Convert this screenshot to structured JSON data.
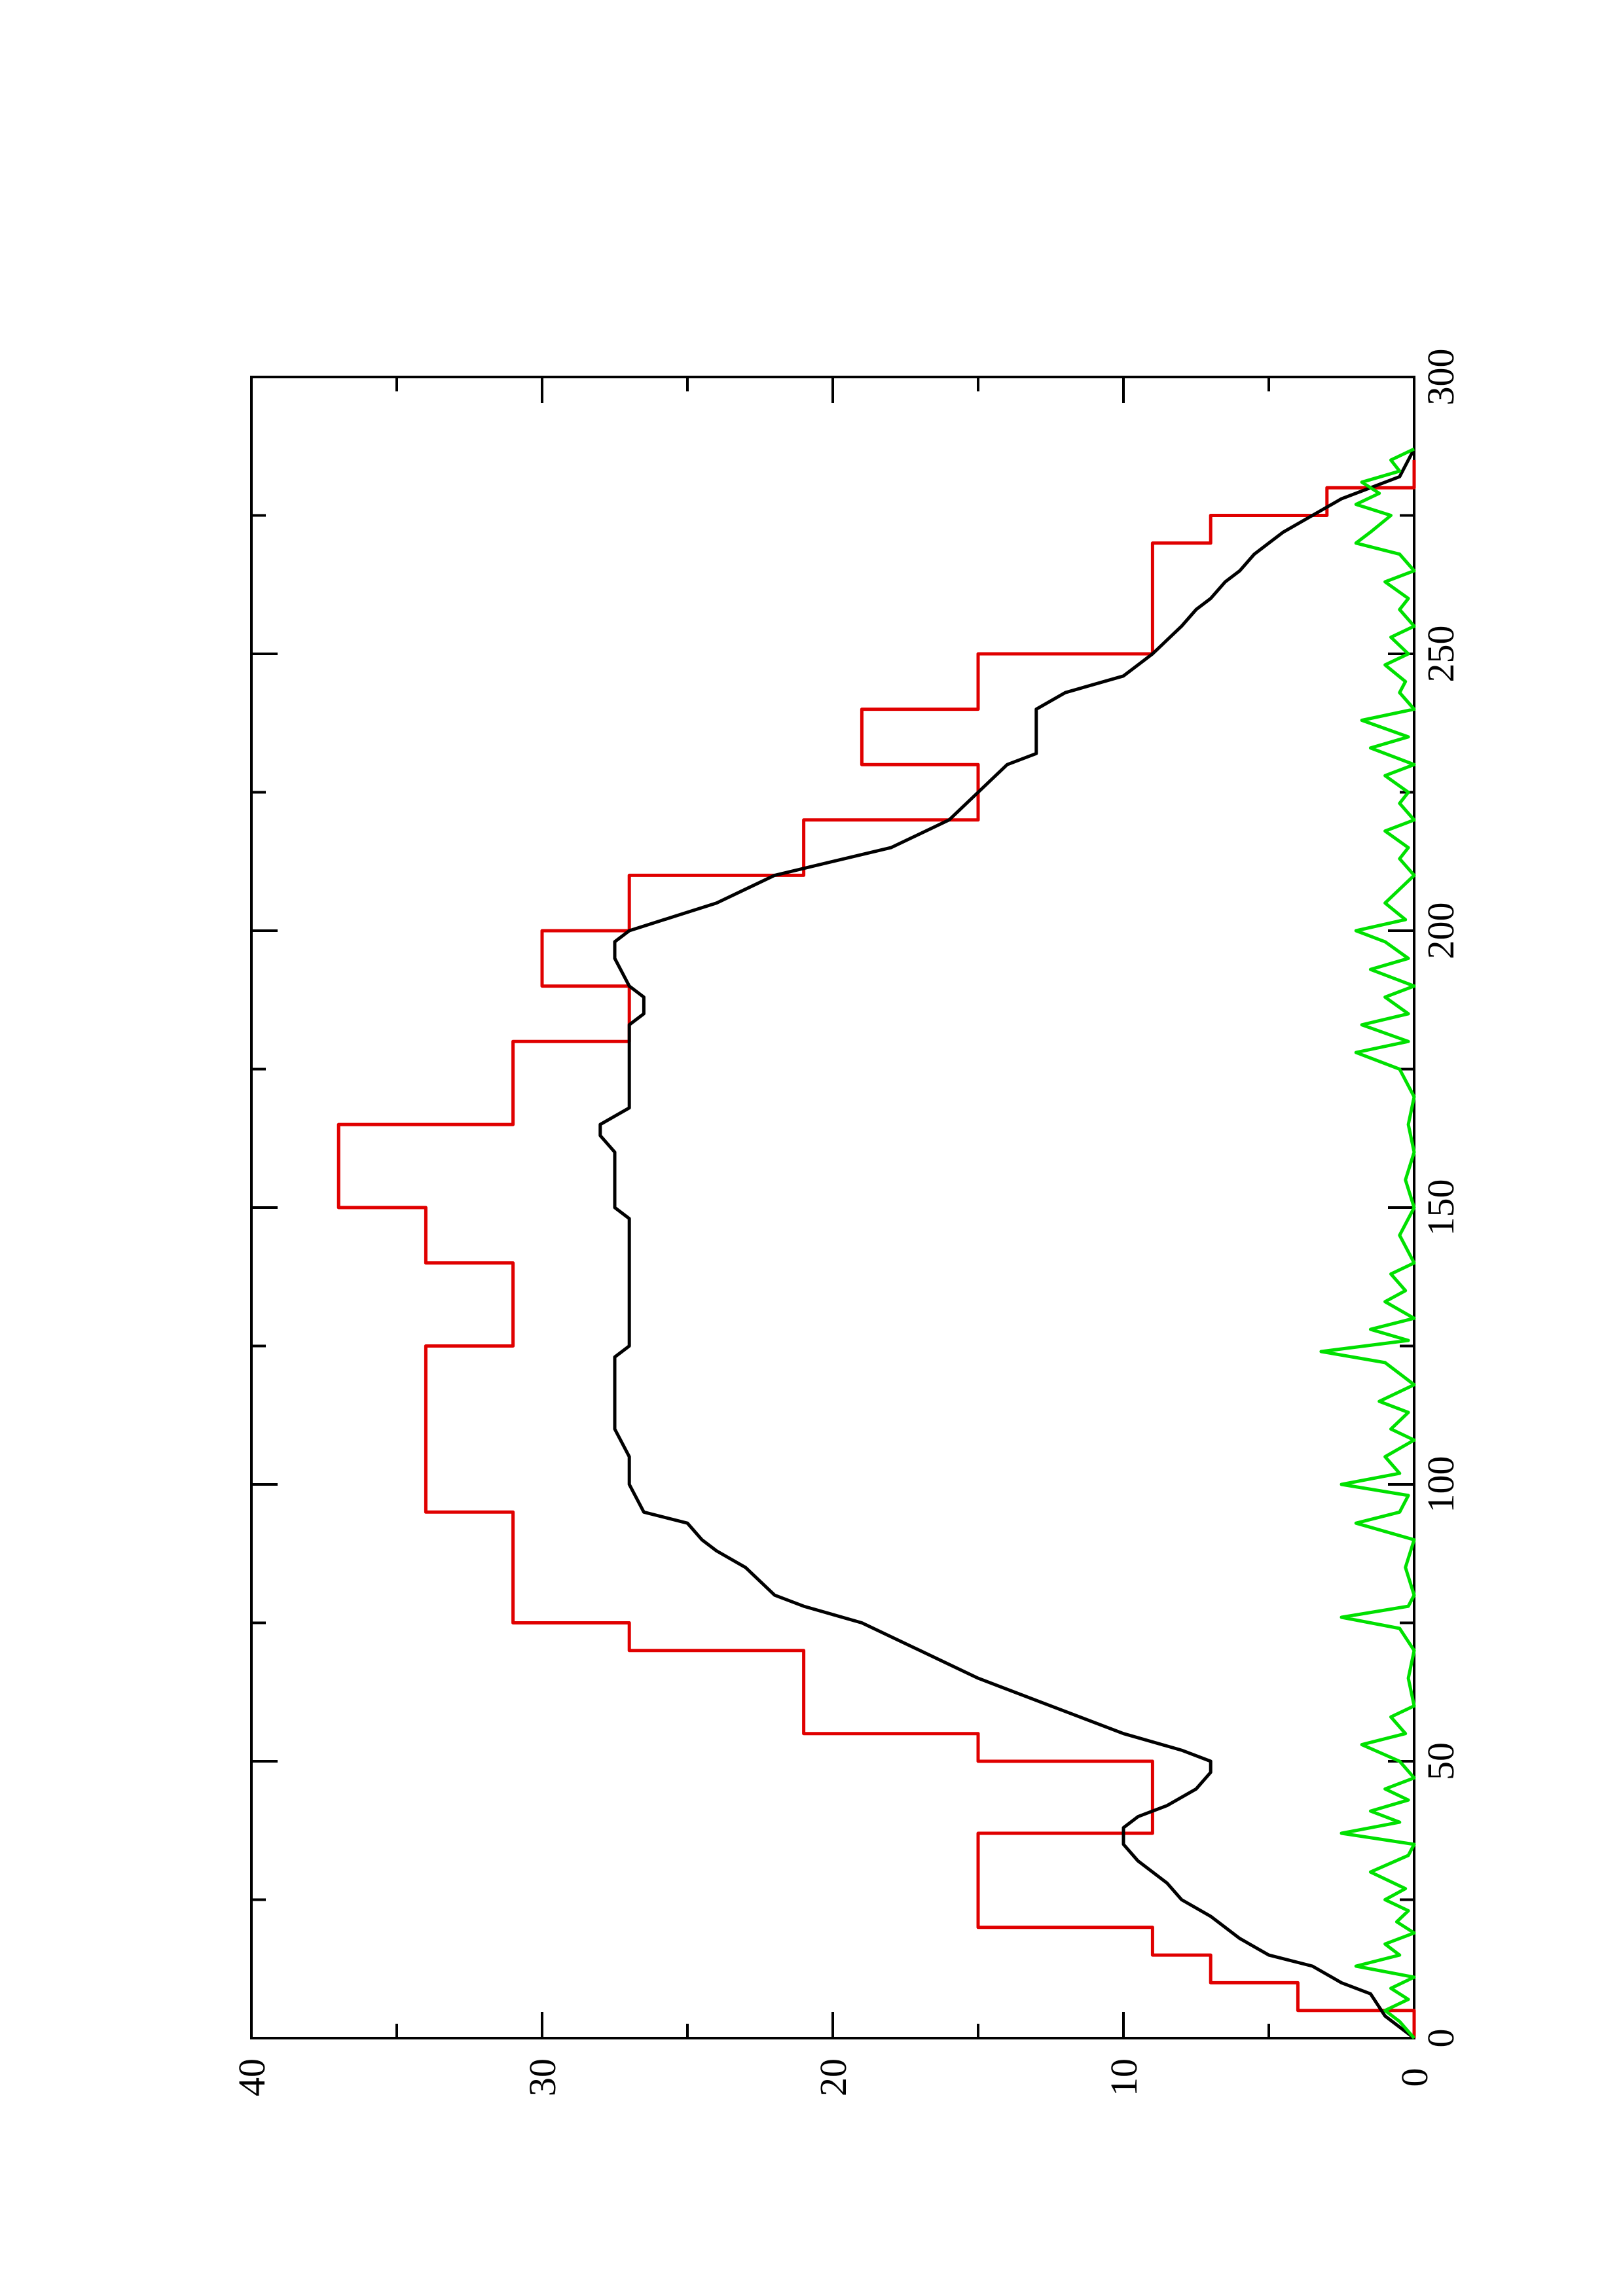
{
  "chart_data": {
    "type": "line",
    "title": "",
    "xlabel": "",
    "ylabel": "",
    "xlim": [
      0,
      300
    ],
    "ylim": [
      0,
      40
    ],
    "orientation": "rotated 90° counter-clockwise (x axis runs vertically, y axis horizontally)",
    "grid": false,
    "legend": "none",
    "x_ticks": [
      0,
      50,
      100,
      150,
      200,
      250,
      300
    ],
    "y_ticks": [
      0,
      10,
      20,
      30,
      40
    ],
    "x_tick_labels": [
      "0",
      "50",
      "100",
      "150",
      "200",
      "250",
      "300"
    ],
    "y_tick_labels": [
      "0",
      "10",
      "20",
      "30",
      "40"
    ],
    "series": [
      {
        "color": "#e00000",
        "style": "step",
        "points": [
          [
            0,
            0
          ],
          [
            5,
            0
          ],
          [
            5,
            4
          ],
          [
            10,
            4
          ],
          [
            10,
            7
          ],
          [
            15,
            7
          ],
          [
            15,
            9
          ],
          [
            20,
            9
          ],
          [
            20,
            15
          ],
          [
            25,
            15
          ],
          [
            25,
            15
          ],
          [
            37,
            15
          ],
          [
            37,
            9
          ],
          [
            50,
            9
          ],
          [
            50,
            15
          ],
          [
            55,
            15
          ],
          [
            55,
            21
          ],
          [
            70,
            21
          ],
          [
            70,
            27
          ],
          [
            75,
            27
          ],
          [
            75,
            31
          ],
          [
            95,
            31
          ],
          [
            95,
            34
          ],
          [
            125,
            34
          ],
          [
            125,
            31
          ],
          [
            140,
            31
          ],
          [
            140,
            34
          ],
          [
            150,
            34
          ],
          [
            150,
            37
          ],
          [
            165,
            37
          ],
          [
            165,
            31
          ],
          [
            180,
            31
          ],
          [
            180,
            27
          ],
          [
            190,
            27
          ],
          [
            190,
            30
          ],
          [
            200,
            30
          ],
          [
            200,
            27
          ],
          [
            210,
            27
          ],
          [
            210,
            21
          ],
          [
            220,
            21
          ],
          [
            220,
            15
          ],
          [
            230,
            15
          ],
          [
            230,
            19
          ],
          [
            240,
            19
          ],
          [
            240,
            15
          ],
          [
            250,
            15
          ],
          [
            250,
            9
          ],
          [
            270,
            9
          ],
          [
            270,
            7
          ],
          [
            275,
            7
          ],
          [
            275,
            3
          ],
          [
            280,
            3
          ],
          [
            280,
            0
          ],
          [
            285,
            0
          ]
        ]
      },
      {
        "color": "#000000",
        "style": "line",
        "points": [
          [
            0,
            0
          ],
          [
            4,
            1
          ],
          [
            8,
            1.5
          ],
          [
            10,
            2.5
          ],
          [
            13,
            3.5
          ],
          [
            15,
            5
          ],
          [
            18,
            6
          ],
          [
            22,
            7
          ],
          [
            25,
            8
          ],
          [
            28,
            8.5
          ],
          [
            32,
            9.5
          ],
          [
            35,
            10
          ],
          [
            38,
            10
          ],
          [
            40,
            9.5
          ],
          [
            42,
            8.5
          ],
          [
            45,
            7.5
          ],
          [
            48,
            7
          ],
          [
            50,
            7
          ],
          [
            52,
            8
          ],
          [
            55,
            10
          ],
          [
            58,
            11.5
          ],
          [
            60,
            12.5
          ],
          [
            65,
            15
          ],
          [
            70,
            17
          ],
          [
            75,
            19
          ],
          [
            78,
            21
          ],
          [
            80,
            22
          ],
          [
            85,
            23
          ],
          [
            88,
            24
          ],
          [
            90,
            24.5
          ],
          [
            93,
            25
          ],
          [
            95,
            26.5
          ],
          [
            100,
            27
          ],
          [
            105,
            27
          ],
          [
            110,
            27.5
          ],
          [
            115,
            27.5
          ],
          [
            120,
            27.5
          ],
          [
            123,
            27.5
          ],
          [
            125,
            27
          ],
          [
            130,
            27
          ],
          [
            135,
            27
          ],
          [
            140,
            27
          ],
          [
            145,
            27
          ],
          [
            148,
            27
          ],
          [
            150,
            27.5
          ],
          [
            155,
            27.5
          ],
          [
            160,
            27.5
          ],
          [
            163,
            28
          ],
          [
            165,
            28
          ],
          [
            168,
            27
          ],
          [
            170,
            27
          ],
          [
            175,
            27
          ],
          [
            180,
            27
          ],
          [
            183,
            27
          ],
          [
            185,
            26.5
          ],
          [
            188,
            26.5
          ],
          [
            190,
            27
          ],
          [
            195,
            27.5
          ],
          [
            198,
            27.5
          ],
          [
            200,
            27
          ],
          [
            205,
            24
          ],
          [
            210,
            22
          ],
          [
            215,
            18
          ],
          [
            220,
            16
          ],
          [
            225,
            15
          ],
          [
            230,
            14
          ],
          [
            232,
            13
          ],
          [
            235,
            13
          ],
          [
            238,
            13
          ],
          [
            240,
            13
          ],
          [
            243,
            12
          ],
          [
            246,
            10
          ],
          [
            250,
            9
          ],
          [
            255,
            8
          ],
          [
            258,
            7.5
          ],
          [
            260,
            7
          ],
          [
            263,
            6.5
          ],
          [
            265,
            6
          ],
          [
            268,
            5.5
          ],
          [
            270,
            5
          ],
          [
            272,
            4.5
          ],
          [
            275,
            3.5
          ],
          [
            278,
            2.5
          ],
          [
            280,
            1.5
          ],
          [
            282,
            0.5
          ],
          [
            285,
            0.2
          ],
          [
            287,
            0
          ]
        ]
      },
      {
        "color": "#00e000",
        "style": "line",
        "points": [
          [
            0,
            0
          ],
          [
            3,
            0.5
          ],
          [
            5,
            1
          ],
          [
            7,
            0.2
          ],
          [
            9,
            0.8
          ],
          [
            11,
            0
          ],
          [
            13,
            2
          ],
          [
            15,
            0.5
          ],
          [
            17,
            1
          ],
          [
            19,
            0
          ],
          [
            21,
            0.6
          ],
          [
            23,
            0.2
          ],
          [
            25,
            1
          ],
          [
            27,
            0.3
          ],
          [
            30,
            1.5
          ],
          [
            33,
            0.2
          ],
          [
            35,
            0
          ],
          [
            37,
            2.5
          ],
          [
            39,
            0.5
          ],
          [
            41,
            1.5
          ],
          [
            43,
            0.2
          ],
          [
            45,
            1
          ],
          [
            47,
            0
          ],
          [
            50,
            0.5
          ],
          [
            53,
            1.8
          ],
          [
            55,
            0.3
          ],
          [
            58,
            0.8
          ],
          [
            60,
            0
          ],
          [
            65,
            0.2
          ],
          [
            70,
            0
          ],
          [
            74,
            0.5
          ],
          [
            76,
            2.5
          ],
          [
            78,
            0.2
          ],
          [
            80,
            0
          ],
          [
            85,
            0.3
          ],
          [
            90,
            0
          ],
          [
            93,
            2
          ],
          [
            95,
            0.5
          ],
          [
            98,
            0.2
          ],
          [
            100,
            2.5
          ],
          [
            102,
            0.5
          ],
          [
            105,
            1
          ],
          [
            108,
            0
          ],
          [
            110,
            0.8
          ],
          [
            113,
            0.2
          ],
          [
            115,
            1.2
          ],
          [
            118,
            0
          ],
          [
            120,
            0.5
          ],
          [
            122,
            1
          ],
          [
            124,
            3.2
          ],
          [
            126,
            0.2
          ],
          [
            128,
            1.5
          ],
          [
            130,
            0
          ],
          [
            133,
            1
          ],
          [
            135,
            0.3
          ],
          [
            138,
            0.8
          ],
          [
            140,
            0
          ],
          [
            145,
            0.5
          ],
          [
            150,
            0
          ],
          [
            155,
            0.3
          ],
          [
            160,
            0
          ],
          [
            165,
            0.2
          ],
          [
            170,
            0
          ],
          [
            175,
            0.5
          ],
          [
            178,
            2
          ],
          [
            180,
            0.2
          ],
          [
            183,
            1.8
          ],
          [
            185,
            0.2
          ],
          [
            188,
            1
          ],
          [
            190,
            0
          ],
          [
            193,
            1.5
          ],
          [
            195,
            0.2
          ],
          [
            198,
            1
          ],
          [
            200,
            2
          ],
          [
            202,
            0.3
          ],
          [
            205,
            1
          ],
          [
            210,
            0
          ],
          [
            213,
            0.5
          ],
          [
            215,
            0.2
          ],
          [
            218,
            1
          ],
          [
            220,
            0
          ],
          [
            223,
            0.5
          ],
          [
            225,
            0.2
          ],
          [
            228,
            1
          ],
          [
            230,
            0
          ],
          [
            233,
            1.5
          ],
          [
            235,
            0.2
          ],
          [
            238,
            1.8
          ],
          [
            240,
            0
          ],
          [
            243,
            0.5
          ],
          [
            245,
            0.3
          ],
          [
            248,
            1
          ],
          [
            250,
            0.2
          ],
          [
            253,
            0.8
          ],
          [
            255,
            0
          ],
          [
            258,
            0.5
          ],
          [
            260,
            0.2
          ],
          [
            263,
            1
          ],
          [
            265,
            0
          ],
          [
            268,
            0.5
          ],
          [
            270,
            2
          ],
          [
            272,
            1.5
          ],
          [
            275,
            0.8
          ],
          [
            277,
            2
          ],
          [
            279,
            1.2
          ],
          [
            281,
            1.8
          ],
          [
            283,
            0.5
          ],
          [
            285,
            0.8
          ],
          [
            287,
            0
          ]
        ]
      }
    ]
  }
}
